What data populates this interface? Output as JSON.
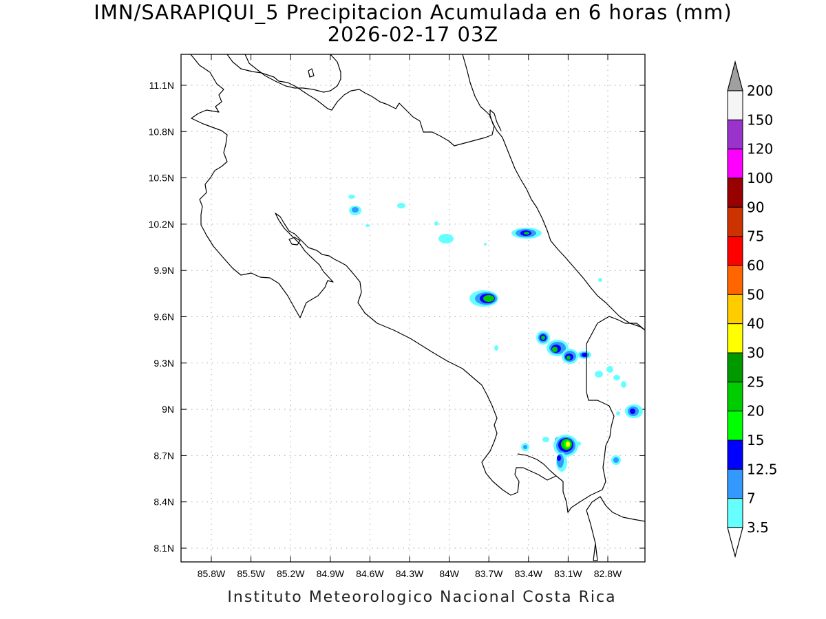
{
  "title": {
    "line1": "IMN/SARAPIQUI_5 Precipitacion Acumulada en 6 horas (mm)",
    "line2": "2026-02-17 03Z"
  },
  "footer": "Instituto Meteorologico Nacional Costa Rica",
  "map": {
    "lon_range": [
      -86.05,
      -82.5
    ],
    "lat_range": [
      8.0,
      11.3
    ],
    "lat_ticks": [
      "11.1N",
      "10.8N",
      "10.5N",
      "10.2N",
      "9.9N",
      "9.6N",
      "9.3N",
      "9N",
      "8.7N",
      "8.4N",
      "8.1N"
    ],
    "lon_ticks": [
      "85.8W",
      "85.5W",
      "85.2W",
      "84.9W",
      "84.6W",
      "84.3W",
      "84W",
      "83.7W",
      "83.4W",
      "83.1W",
      "82.8W"
    ],
    "gridlines": "dotted"
  },
  "colorbar": {
    "levels": [
      "200",
      "150",
      "120",
      "100",
      "90",
      "75",
      "60",
      "50",
      "40",
      "30",
      "25",
      "20",
      "15",
      "12.5",
      "7",
      "3.5"
    ],
    "colors": [
      "#f5f5f5",
      "#9933cc",
      "#ff00ff",
      "#990000",
      "#cc3300",
      "#ff0000",
      "#ff6600",
      "#ffcc00",
      "#ffff00",
      "#009900",
      "#00cc00",
      "#00ff00",
      "#0000ff",
      "#3399ff",
      "#66ffff"
    ],
    "top_arrow_color": "#a0a0a0",
    "bottom_arrow_color": "#ffffff"
  },
  "colors": {
    "light_cyan": "#66ffff",
    "light_blue": "#3399ff",
    "blue": "#0000ff",
    "green": "#00cc00",
    "bright_green": "#00ff00",
    "yellow": "#ffff00"
  }
}
